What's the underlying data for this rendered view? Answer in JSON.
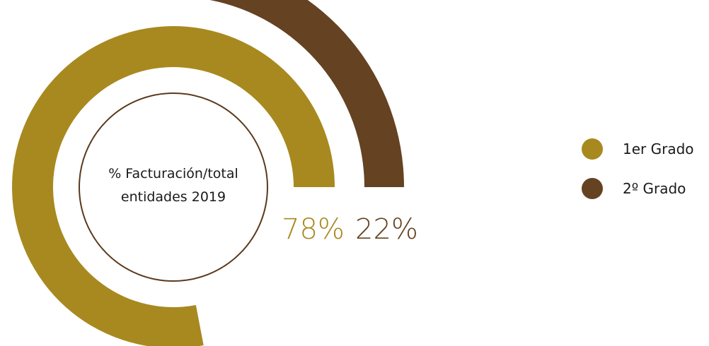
{
  "chart_data": {
    "type": "pie",
    "title": "% Facturación/total entidades 2019",
    "title_lines": [
      "% Facturación/total",
      "entidades 2019"
    ],
    "categories": [
      "1er Grado",
      "2º Grado"
    ],
    "values": [
      78,
      22
    ],
    "value_labels": [
      "78%",
      "22%"
    ],
    "colors": [
      "#a8891f",
      "#654221"
    ],
    "legend_position": "right"
  }
}
